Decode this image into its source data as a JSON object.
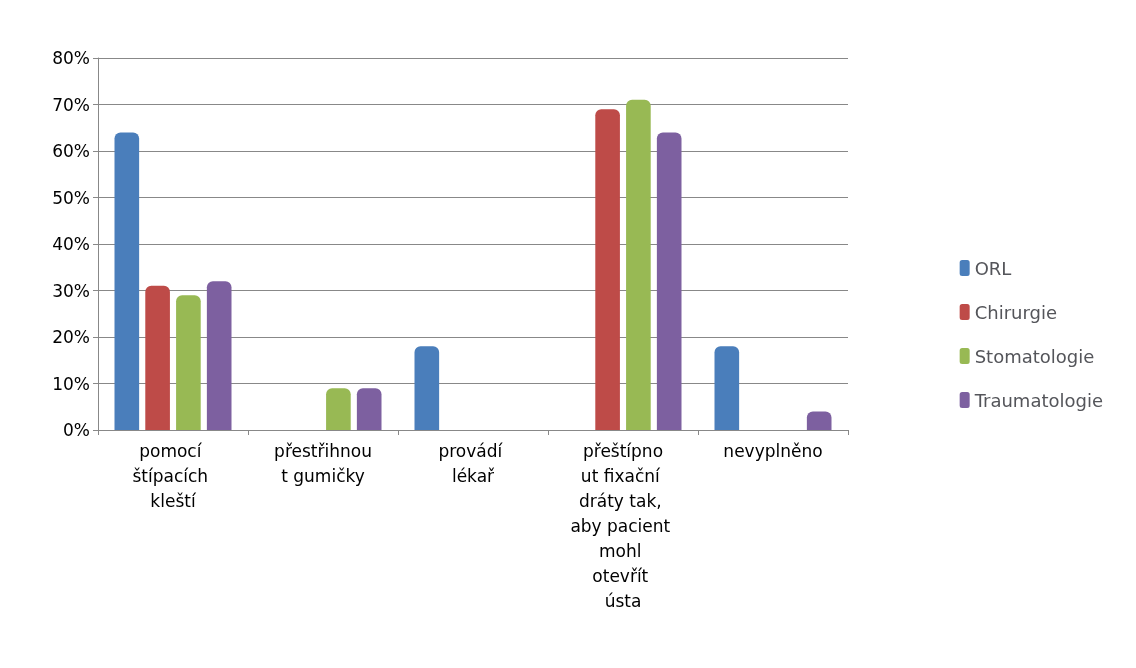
{
  "chart_data": {
    "type": "bar",
    "categories": [
      "pomocí štípacích kleští",
      "přestřihnout gumičky",
      "provádí lékař",
      "přeštípnout fixační dráty tak, aby pacient mohl otevřít ústa",
      "nevyplněno"
    ],
    "series": [
      {
        "name": "ORL",
        "color": "#4a7ebb",
        "values": [
          64,
          0,
          18,
          0,
          18
        ]
      },
      {
        "name": "Chirurgie",
        "color": "#be4b48",
        "values": [
          31,
          0,
          0,
          69,
          0
        ]
      },
      {
        "name": "Stomatologie",
        "color": "#98b954",
        "values": [
          29,
          9,
          0,
          71,
          0
        ]
      },
      {
        "name": "Traumatologie",
        "color": "#7d60a0",
        "values": [
          32,
          9,
          0,
          64,
          4
        ]
      }
    ],
    "ylim": [
      0,
      80
    ],
    "yticks": [
      {
        "value": 0,
        "label": "0%"
      },
      {
        "value": 10,
        "label": "10%"
      },
      {
        "value": 20,
        "label": "20%"
      },
      {
        "value": 30,
        "label": "30%"
      },
      {
        "value": 40,
        "label": "40%"
      },
      {
        "value": 50,
        "label": "50%"
      },
      {
        "value": 60,
        "label": "60%"
      },
      {
        "value": 70,
        "label": "70%"
      },
      {
        "value": 80,
        "label": "80%"
      }
    ],
    "grid": "y",
    "legend": "right"
  }
}
